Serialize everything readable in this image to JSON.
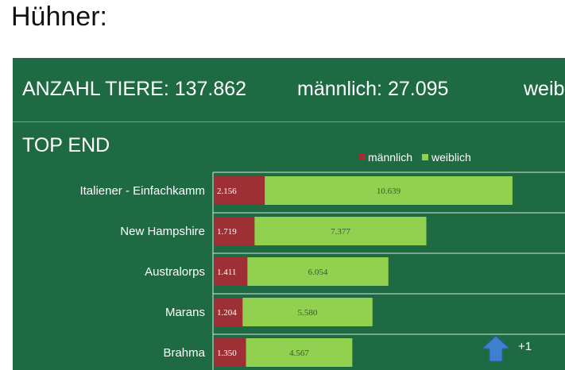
{
  "page": {
    "heading": "Hühner:"
  },
  "summary": {
    "total": "ANZAHL TIERE: 137.862",
    "male": "männlich: 27.095",
    "female": "weib"
  },
  "colors": {
    "panel": "#1e6b43",
    "male": "#9e2f35",
    "female": "#92d050"
  },
  "arrow": {
    "icon": "arrow-up-icon",
    "label": "+1"
  },
  "chart_data": {
    "type": "bar",
    "orientation": "horizontal",
    "stacked": true,
    "title": "TOP END",
    "legend_position": "top-right",
    "categories": [
      "Italiener - Einfachkamm",
      "New Hampshire",
      "Australorps",
      "Marans",
      "Brahma"
    ],
    "series": [
      {
        "name": "männlich",
        "color": "#9e2f35",
        "values": [
          2156,
          1719,
          1411,
          1204,
          1350
        ],
        "labels": [
          "2.156",
          "1.719",
          "1.411",
          "1.204",
          "1.350"
        ]
      },
      {
        "name": "weiblich",
        "color": "#92d050",
        "values": [
          10639,
          7377,
          6054,
          5580,
          4567
        ],
        "labels": [
          "10.639",
          "7.377",
          "6.054",
          "5.580",
          "4.567"
        ]
      }
    ],
    "xlim": [
      0,
      15000
    ],
    "grid": true
  }
}
